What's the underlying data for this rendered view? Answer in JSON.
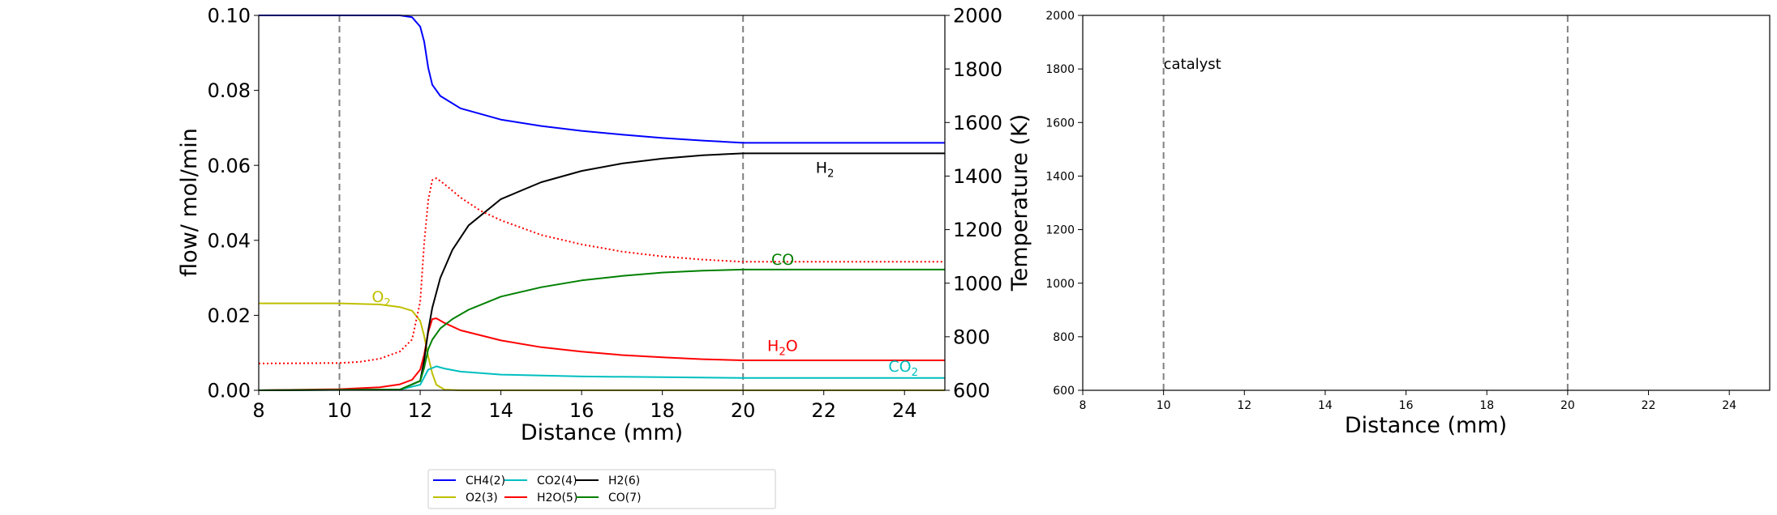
{
  "chart_data": [
    {
      "type": "line",
      "xlabel": "Distance (mm)",
      "ylabel": "flow/ mol/min",
      "y2label": "Temperature (K)",
      "xlim": [
        8,
        25
      ],
      "ylim": [
        0,
        0.1
      ],
      "y2lim": [
        600,
        2000
      ],
      "xticks": [
        "8",
        "10",
        "12",
        "14",
        "16",
        "18",
        "20",
        "22",
        "24"
      ],
      "yticks": [
        "0.00",
        "0.02",
        "0.04",
        "0.06",
        "0.08",
        "0.10"
      ],
      "y2ticks": [
        "600",
        "800",
        "1000",
        "1200",
        "1400",
        "1600",
        "1800",
        "2000"
      ],
      "vlines": [
        10,
        20
      ],
      "grid": false,
      "series": [
        {
          "name": "CH4(2)",
          "color": "#0000ff",
          "axis": "left",
          "x": [
            8,
            11.5,
            11.8,
            12.0,
            12.1,
            12.2,
            12.3,
            12.5,
            13,
            14,
            15,
            16,
            17,
            18,
            19,
            20,
            25
          ],
          "y": [
            0.1,
            0.1,
            0.0995,
            0.097,
            0.093,
            0.086,
            0.0815,
            0.0785,
            0.0752,
            0.0722,
            0.0705,
            0.0692,
            0.0682,
            0.0673,
            0.0666,
            0.066,
            0.066
          ]
        },
        {
          "name": "O2(3)",
          "color": "#bfbf00",
          "axis": "left",
          "x": [
            8,
            10,
            11,
            11.5,
            11.8,
            12.0,
            12.1,
            12.2,
            12.3,
            12.4,
            12.6,
            13,
            25
          ],
          "y": [
            0.0232,
            0.0232,
            0.0229,
            0.0222,
            0.0212,
            0.0185,
            0.0145,
            0.009,
            0.0045,
            0.0015,
            0.0002,
            0.0,
            0.0
          ]
        },
        {
          "name": "CO2(4)",
          "color": "#00bfbf",
          "axis": "left",
          "x": [
            8,
            11.5,
            12.0,
            12.2,
            12.4,
            12.6,
            13,
            14,
            16,
            18,
            20,
            25
          ],
          "y": [
            0.0,
            0.0002,
            0.0015,
            0.0055,
            0.0064,
            0.0058,
            0.005,
            0.0042,
            0.0037,
            0.0035,
            0.0033,
            0.0033
          ]
        },
        {
          "name": "H2O(5)",
          "color": "#ff0000",
          "axis": "left",
          "x": [
            8,
            10,
            11,
            11.5,
            11.8,
            12.0,
            12.1,
            12.2,
            12.3,
            12.4,
            12.6,
            13,
            14,
            15,
            16,
            17,
            18,
            19,
            20,
            25
          ],
          "y": [
            0.0,
            0.0003,
            0.0008,
            0.0016,
            0.0028,
            0.0055,
            0.0095,
            0.0155,
            0.019,
            0.0192,
            0.018,
            0.016,
            0.0133,
            0.0115,
            0.0103,
            0.0094,
            0.0088,
            0.0083,
            0.008,
            0.008
          ]
        },
        {
          "name": "H2(6)",
          "color": "#000000",
          "axis": "left",
          "x": [
            8,
            11.5,
            12.0,
            12.1,
            12.2,
            12.3,
            12.5,
            12.8,
            13.2,
            14,
            15,
            16,
            17,
            18,
            19,
            20,
            25
          ],
          "y": [
            0.0,
            0.0002,
            0.0025,
            0.008,
            0.016,
            0.022,
            0.03,
            0.0375,
            0.044,
            0.051,
            0.0555,
            0.0585,
            0.0605,
            0.0618,
            0.0627,
            0.0632,
            0.0632
          ]
        },
        {
          "name": "CO(7)",
          "color": "#008000",
          "axis": "left",
          "x": [
            8,
            11.5,
            12.0,
            12.1,
            12.2,
            12.3,
            12.5,
            12.8,
            13.2,
            14,
            15,
            16,
            17,
            18,
            19,
            20,
            25
          ],
          "y": [
            0.0,
            0.0002,
            0.0025,
            0.006,
            0.011,
            0.0135,
            0.0165,
            0.019,
            0.0215,
            0.025,
            0.0275,
            0.0293,
            0.0305,
            0.0314,
            0.0319,
            0.0322,
            0.0322
          ]
        },
        {
          "name": "Temperature",
          "color": "#ff0000",
          "axis": "right",
          "dash": true,
          "x": [
            8,
            10,
            10.5,
            11,
            11.5,
            11.8,
            12.0,
            12.1,
            12.2,
            12.3,
            12.4,
            12.6,
            13,
            13.5,
            14,
            15,
            16,
            17,
            18,
            19,
            20,
            25
          ],
          "y": [
            700,
            702,
            706,
            718,
            745,
            790,
            930,
            1150,
            1310,
            1385,
            1392,
            1370,
            1320,
            1270,
            1235,
            1180,
            1145,
            1118,
            1100,
            1088,
            1080,
            1080
          ]
        }
      ],
      "annotations": [
        {
          "text": "O",
          "sub": "2",
          "x": 10.8,
          "y": 0.0235,
          "color": "#bfbf00"
        },
        {
          "text": "H",
          "sub": "2",
          "x": 21.8,
          "y": 0.058,
          "color": "#000000"
        },
        {
          "text": "CO",
          "sub": "",
          "x": 20.7,
          "y": 0.0335,
          "color": "#008000"
        },
        {
          "text": "H",
          "sub": "2",
          "tail": "O",
          "x": 20.6,
          "y": 0.0105,
          "color": "#ff0000"
        },
        {
          "text": "CO",
          "sub": "2",
          "x": 23.6,
          "y": 0.005,
          "color": "#00bfbf"
        }
      ],
      "legend": {
        "placement": "bottom-center",
        "entries": [
          {
            "label": "CH4(2)",
            "color": "#0000ff"
          },
          {
            "label": "O2(3)",
            "color": "#bfbf00"
          },
          {
            "label": "CO2(4)",
            "color": "#00bfbf"
          },
          {
            "label": "H2O(5)",
            "color": "#ff0000"
          },
          {
            "label": "H2(6)",
            "color": "#000000"
          },
          {
            "label": "CO(7)",
            "color": "#008000"
          }
        ]
      }
    },
    {
      "type": "line",
      "xlabel": "Distance (mm)",
      "ylabel": "",
      "xlim": [
        8,
        25
      ],
      "ylim": [
        600,
        2000
      ],
      "xticks": [
        "8",
        "10",
        "12",
        "14",
        "16",
        "18",
        "20",
        "22",
        "24"
      ],
      "yticks": [
        "600",
        "800",
        "1000",
        "1200",
        "1400",
        "1600",
        "1800",
        "2000"
      ],
      "vlines": [
        10,
        20
      ],
      "grid": false,
      "series": [],
      "annotations": [
        {
          "text": "catalyst",
          "sub": "",
          "x": 10.0,
          "y": 1800,
          "color": "#000000"
        }
      ]
    }
  ]
}
